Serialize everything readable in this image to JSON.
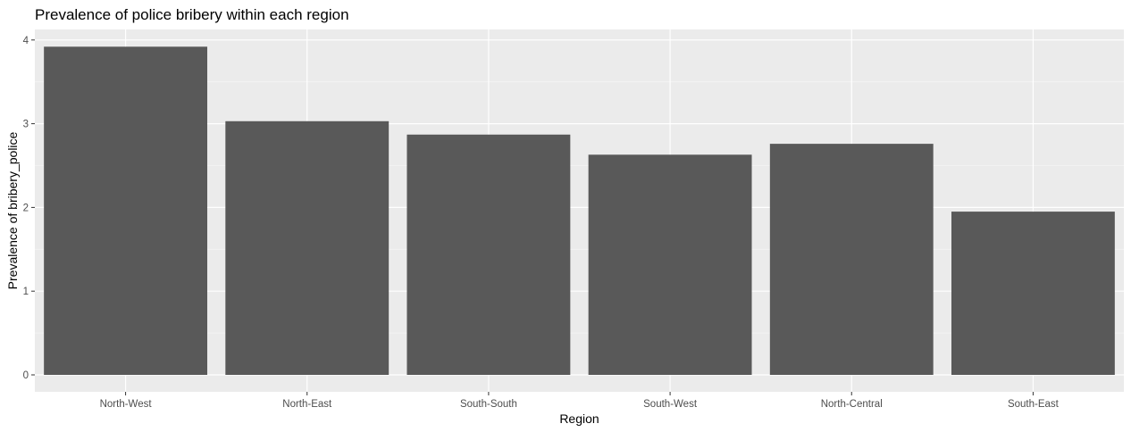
{
  "chart_data": {
    "type": "bar",
    "title": "Prevalence of police bribery within each region",
    "xlabel": "Region",
    "ylabel": "Prevalence of bribery_police",
    "categories": [
      "North-West",
      "North-East",
      "South-South",
      "South-West",
      "North-Central",
      "South-East"
    ],
    "values": [
      3.92,
      3.03,
      2.87,
      2.63,
      2.76,
      1.95
    ],
    "ylim": [
      0,
      4.2
    ],
    "yticks": [
      0,
      1,
      2,
      3,
      4
    ],
    "grid": true,
    "legend": "none",
    "colors": {
      "panel": "#ebebeb",
      "bar": "#595959",
      "grid_major": "#ffffff",
      "grid_minor": "#f5f5f5",
      "tick": "#333333"
    }
  }
}
